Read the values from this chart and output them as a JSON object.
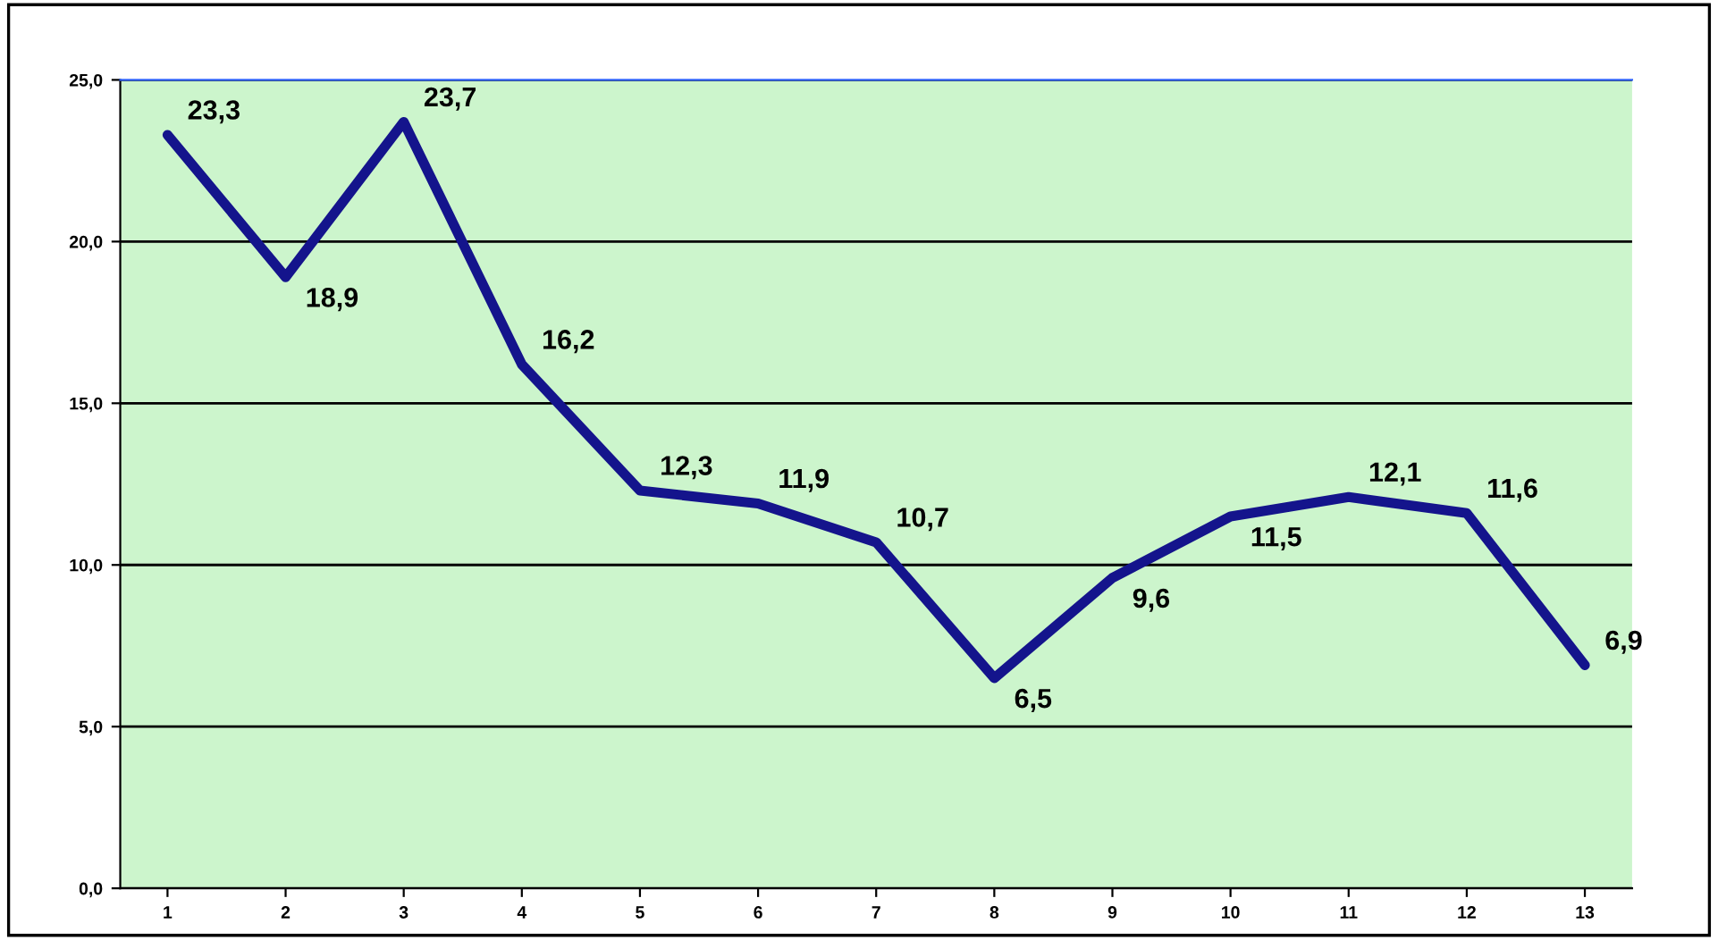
{
  "chart_data": {
    "type": "line",
    "categories": [
      "1",
      "2",
      "3",
      "4",
      "5",
      "6",
      "7",
      "8",
      "9",
      "10",
      "11",
      "12",
      "13"
    ],
    "series": [
      {
        "color": "#14148c",
        "values": [
          23.3,
          18.9,
          23.7,
          16.2,
          12.3,
          11.9,
          10.7,
          6.5,
          9.6,
          11.5,
          12.1,
          11.6,
          6.9
        ],
        "value_labels": [
          "23,3",
          "18,9",
          "23,7",
          "16,2",
          "12,3",
          "11,9",
          "10,7",
          "6,5",
          "9,6",
          "11,5",
          "12,1",
          "11,6",
          "6,9"
        ]
      }
    ],
    "ylim": [
      0,
      25
    ],
    "yticks": [
      {
        "value": 0,
        "label": "0,0"
      },
      {
        "value": 5,
        "label": "5,0"
      },
      {
        "value": 10,
        "label": "10,0"
      },
      {
        "value": 15,
        "label": "15,0"
      },
      {
        "value": 20,
        "label": "20,0"
      },
      {
        "value": 25,
        "label": "25,0"
      }
    ],
    "grid": "y",
    "marker": "none",
    "line_style": "solid",
    "legend": false
  }
}
